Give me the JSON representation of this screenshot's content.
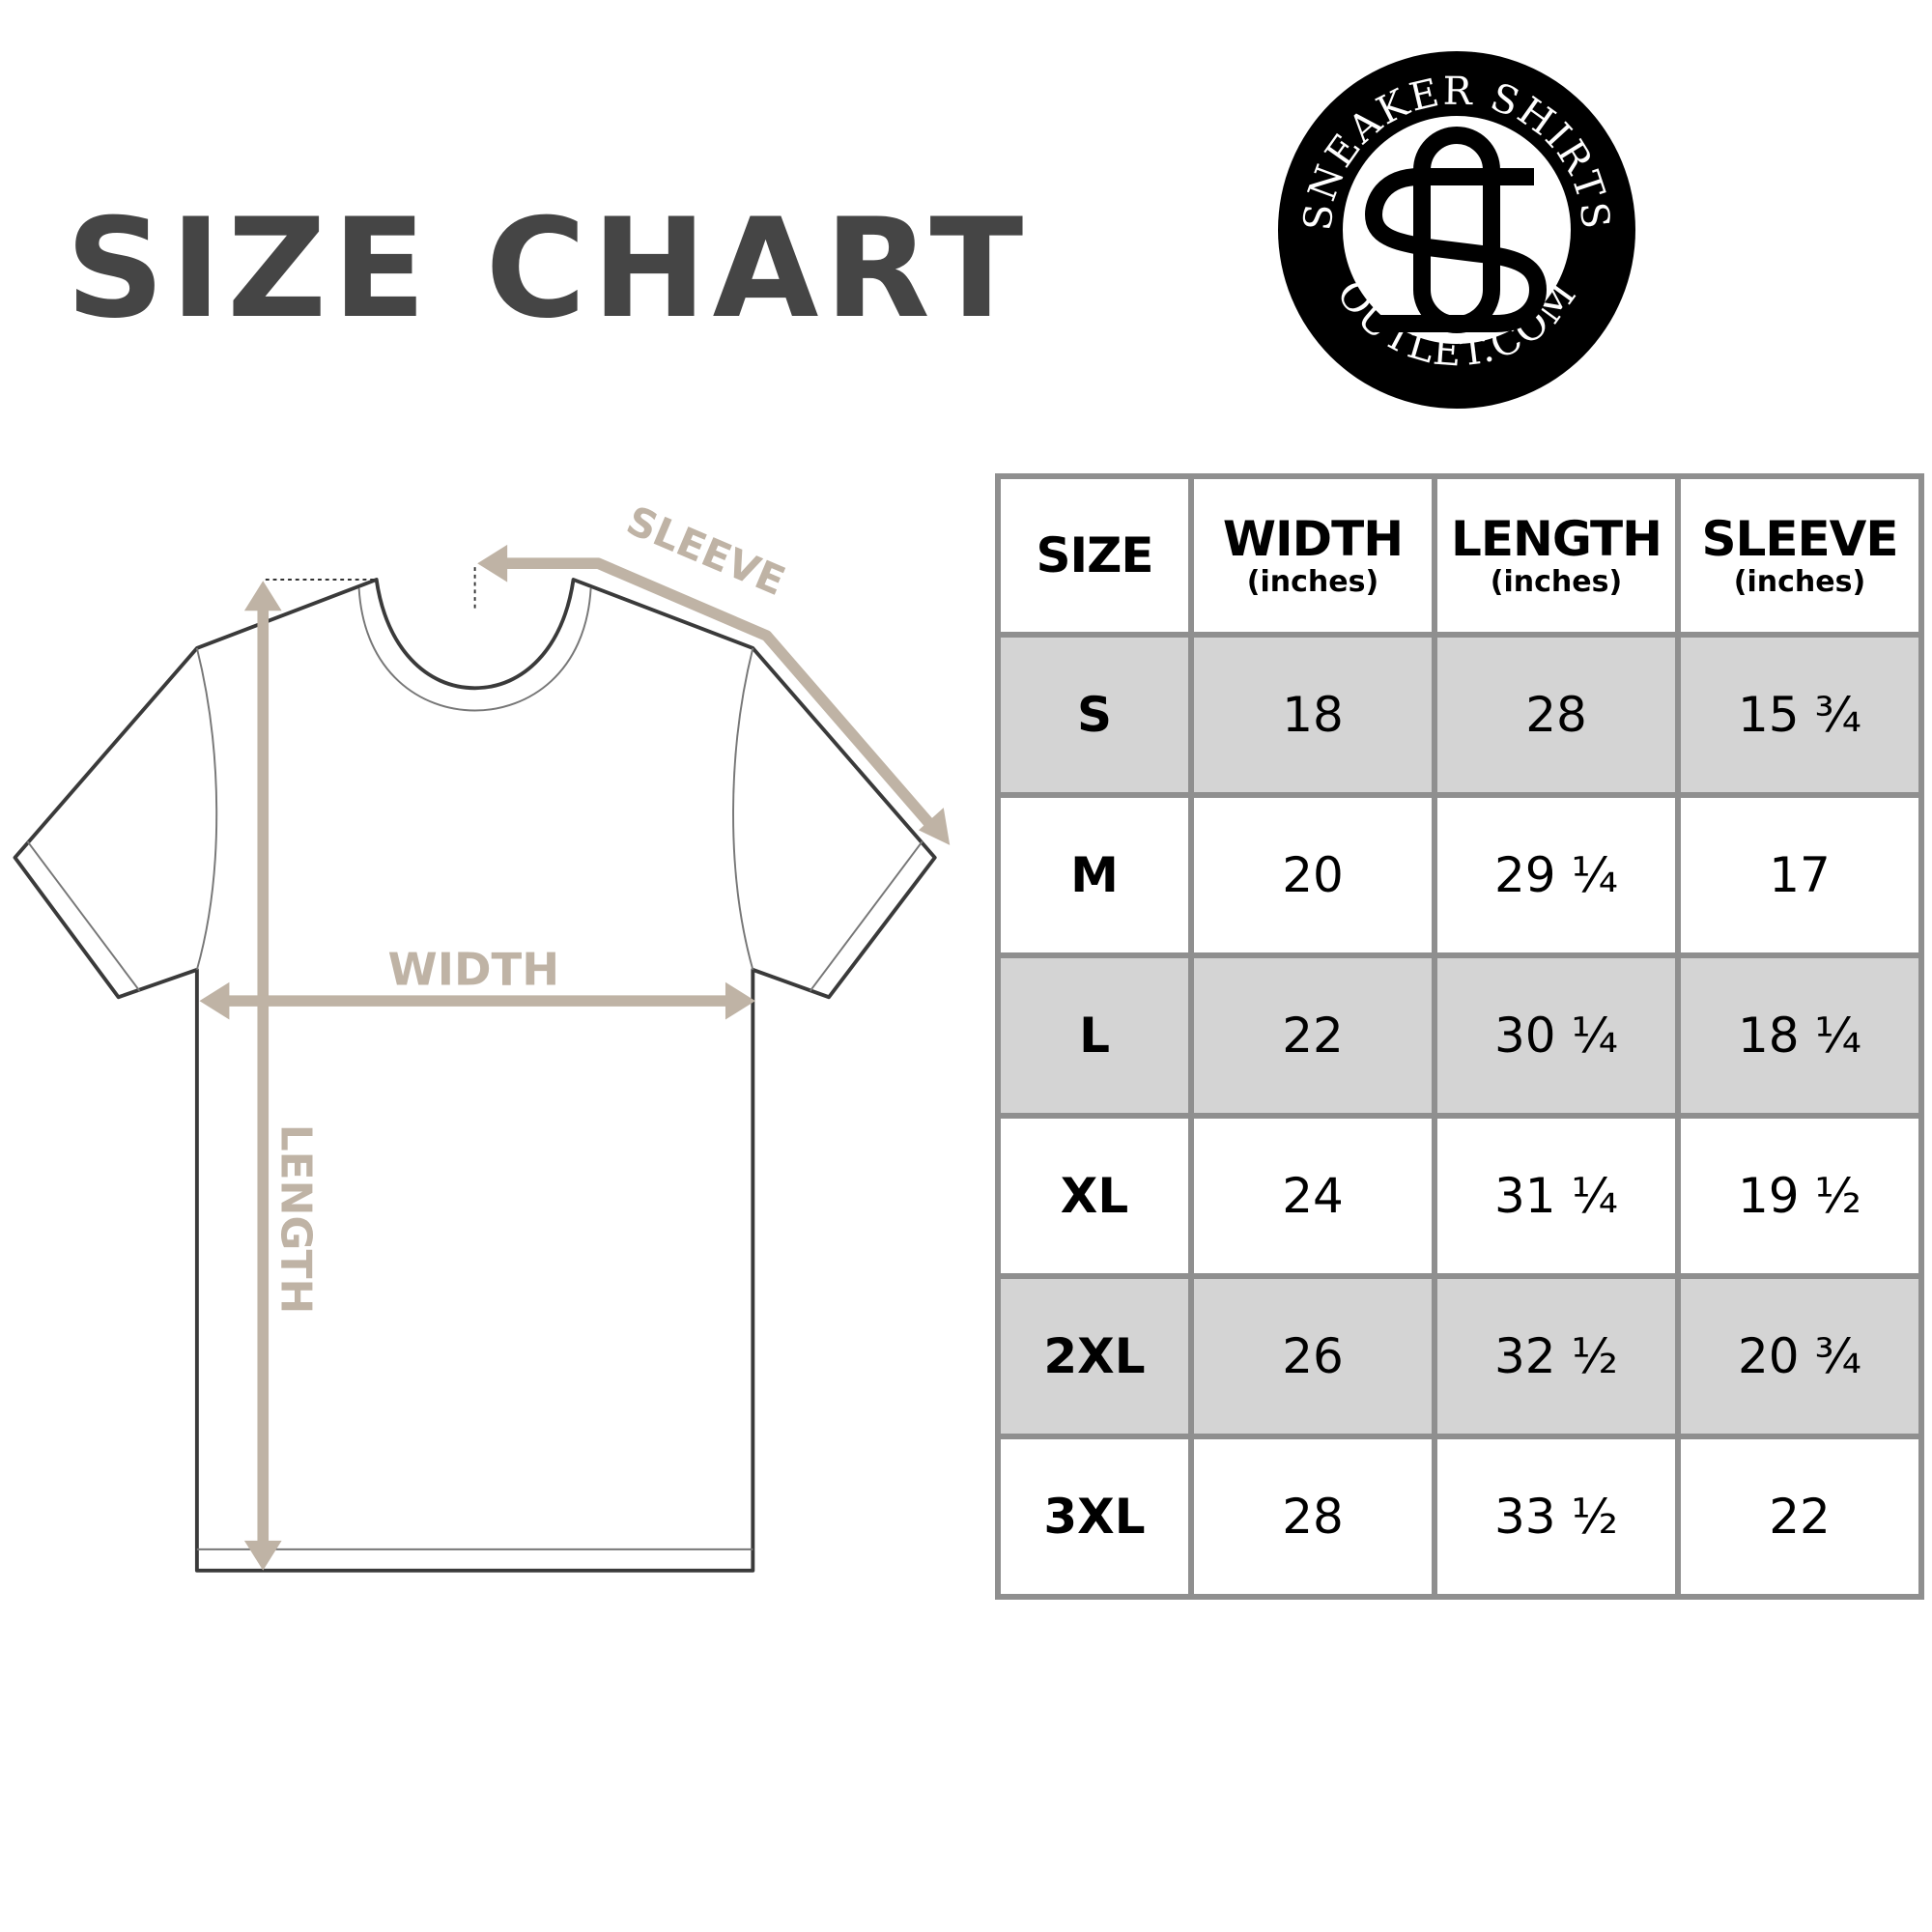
{
  "title": "SIZE CHART",
  "brand": {
    "top_text": "SNEAKER SHIRTS",
    "bottom_text": "OUTLET.COM",
    "monogram": "SO"
  },
  "diagram": {
    "labels": {
      "sleeve": "SLEEVE",
      "width": "WIDTH",
      "length": "LENGTH"
    },
    "colors": {
      "arrow": "#bfb3a5",
      "outline": "#3a3a3a"
    }
  },
  "table": {
    "headers": [
      {
        "main": "SIZE",
        "sub": ""
      },
      {
        "main": "WIDTH",
        "sub": "(inches)"
      },
      {
        "main": "LENGTH",
        "sub": "(inches)"
      },
      {
        "main": "SLEEVE",
        "sub": "(inches)"
      }
    ],
    "rows": [
      [
        "S",
        "18",
        "28",
        "15 ¾"
      ],
      [
        "M",
        "20",
        "29 ¼",
        "17"
      ],
      [
        "L",
        "22",
        "30 ¼",
        "18 ¼"
      ],
      [
        "XL",
        "24",
        "31 ¼",
        "19 ½"
      ],
      [
        "2XL",
        "26",
        "32 ½",
        "20 ¾"
      ],
      [
        "3XL",
        "28",
        "33 ½",
        "22"
      ]
    ],
    "colors": {
      "border": "#8f8f8f",
      "shade": "#d4d4d4"
    }
  }
}
